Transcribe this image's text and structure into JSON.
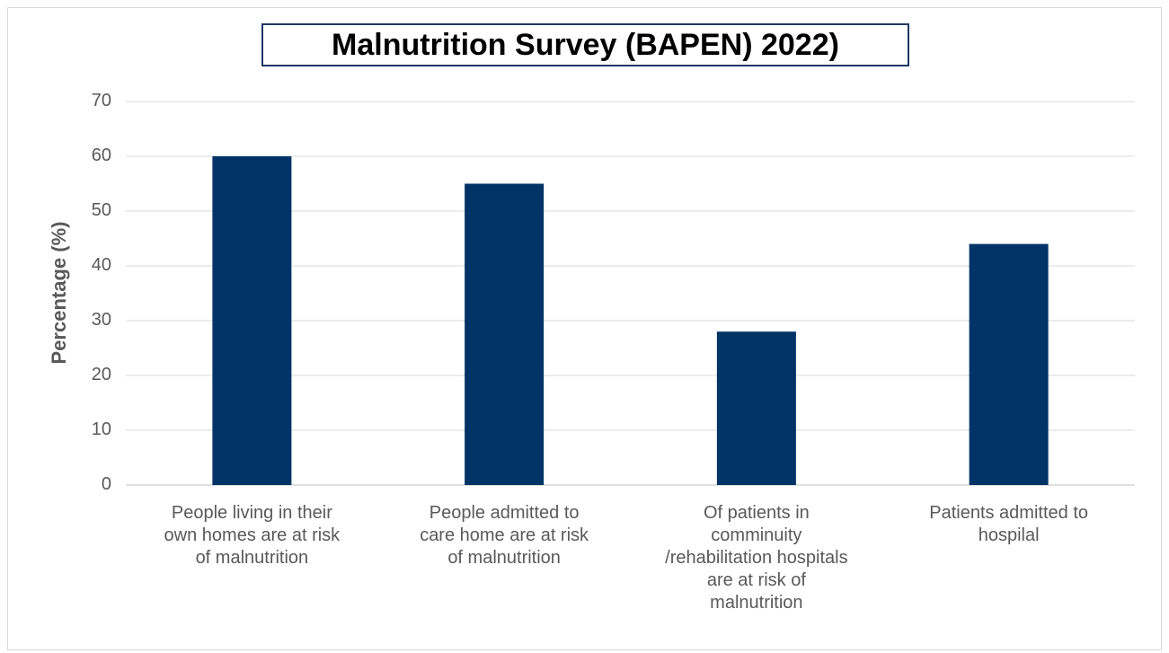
{
  "chart_data": {
    "type": "bar",
    "title": "Malnutrition Survey (BAPEN) 2022)",
    "ylabel": "Percentage (%)",
    "xlabel": "",
    "ylim": [
      0,
      70
    ],
    "yticks": [
      "0",
      "10",
      "20",
      "30",
      "40",
      "50",
      "60",
      "70"
    ],
    "grid": true,
    "legend": "none",
    "bar_color": "#003366",
    "categories": [
      "People living in their\nown homes are at risk\nof malnutrition",
      "People admitted  to\ncare home are at risk\nof malnutrition",
      "Of patients in\ncomminuity\n/rehabilitation hospitals\nare at risk of\nmalnutrition",
      "Patients admitted to\nhospilal"
    ],
    "values": [
      60,
      55,
      28,
      44
    ]
  }
}
